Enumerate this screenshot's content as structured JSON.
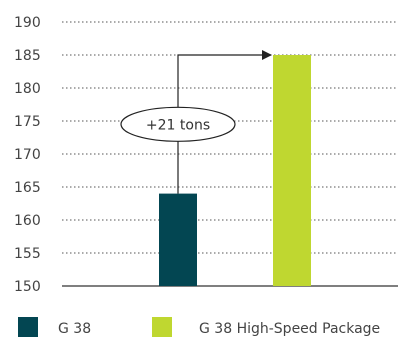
{
  "chart_data": {
    "type": "bar",
    "title": "",
    "xlabel": "",
    "ylabel": "",
    "categories": [
      "G 38",
      "G 38 High-Speed Package"
    ],
    "values": [
      164,
      185
    ],
    "ylim": [
      150,
      190
    ],
    "yticks": [
      150,
      155,
      160,
      165,
      170,
      175,
      180,
      185,
      190
    ],
    "grid": true,
    "legend_position": "bottom",
    "colors": [
      "#034652",
      "#bfd730"
    ],
    "annotation": {
      "text": "+21 tons",
      "from": "G 38",
      "to": "G 38 High-Speed Package"
    }
  }
}
